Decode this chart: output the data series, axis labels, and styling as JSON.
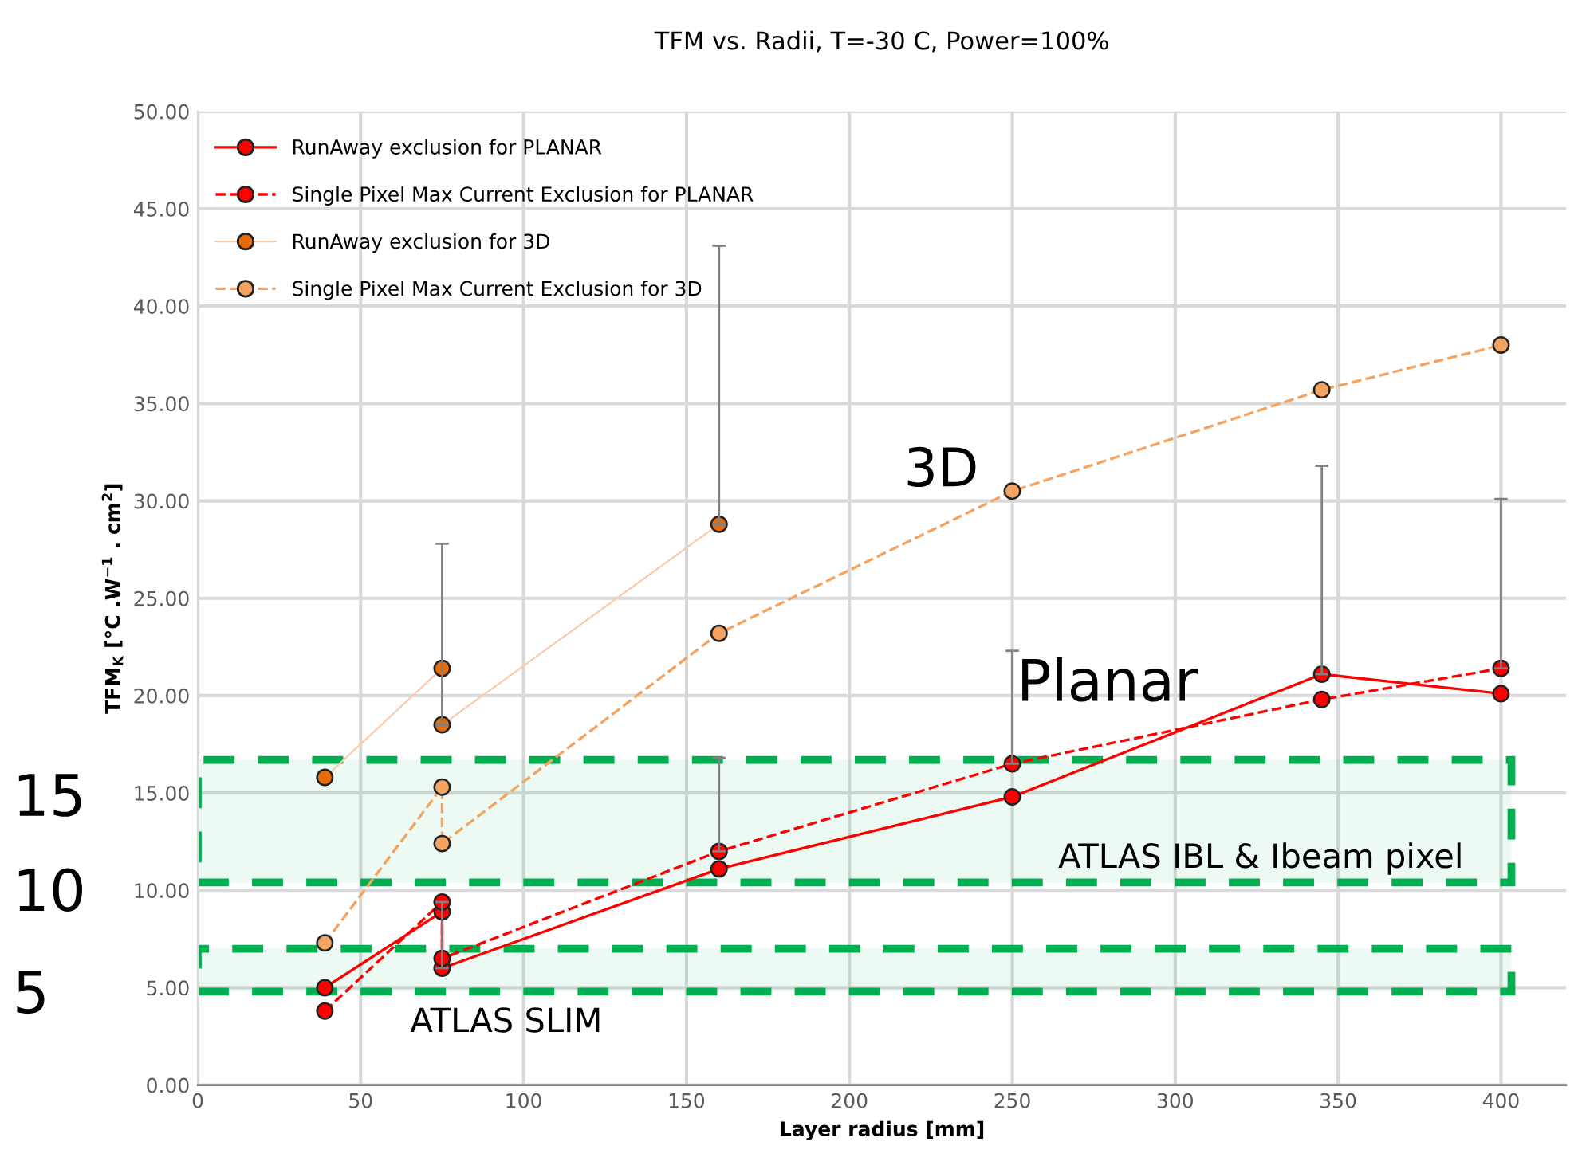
{
  "chart_data": {
    "type": "line",
    "title": "TFM vs. Radii, T=-30 C, Power=100%",
    "xlabel": "Layer radius [mm]",
    "ylabel": "TFM$_{K}$ [°C .W$^{−1}$ . cm$^{2}$]",
    "xlim": [
      0,
      420
    ],
    "xticks": [
      0,
      50,
      100,
      150,
      200,
      250,
      300,
      350,
      400
    ],
    "ylim": [
      0,
      50
    ],
    "yticks": [
      {
        "value": 0,
        "label": "0.00"
      },
      {
        "value": 5,
        "label": "5.00"
      },
      {
        "value": 10,
        "label": "10.00"
      },
      {
        "value": 15,
        "label": "15.00"
      },
      {
        "value": 20,
        "label": "20.00"
      },
      {
        "value": 25,
        "label": "25.00"
      },
      {
        "value": 30,
        "label": "30.00"
      },
      {
        "value": 35,
        "label": "35.00"
      },
      {
        "value": 40,
        "label": "40.00"
      },
      {
        "value": 45,
        "label": "45.00"
      },
      {
        "value": 50,
        "label": "50.00"
      }
    ],
    "grid": true,
    "legend": "top left",
    "marker": "circle",
    "series": [
      {
        "name": "RunAway exclusion for PLANAR",
        "color": "#ff0000",
        "line_style": "solid",
        "x": [
          39,
          75,
          75,
          160,
          250,
          345,
          400
        ],
        "values": [
          5.0,
          8.9,
          6.0,
          11.1,
          14.8,
          21.1,
          20.1
        ],
        "errors": [
          null,
          null,
          [
            6.0,
            9.4
          ],
          null,
          null,
          [
            21.1,
            31.8
          ],
          null
        ]
      },
      {
        "name": "Single Pixel Max Current Exclusion for PLANAR",
        "color": "#ff0000",
        "line_style": "dashed",
        "x": [
          39,
          75,
          75,
          160,
          250,
          345,
          400
        ],
        "values": [
          3.8,
          9.4,
          6.5,
          12.0,
          16.5,
          19.8,
          21.4
        ],
        "errors": [
          null,
          null,
          null,
          [
            12.0,
            16.8
          ],
          [
            16.5,
            22.3
          ],
          null,
          [
            21.4,
            30.1
          ]
        ]
      },
      {
        "name": "RunAway exclusion for 3D",
        "color": "#f8cbad",
        "colors": [
          "#e46c0a",
          "#e46c0a",
          "#e46c0a",
          "#e46c0a"
        ],
        "line_style": "solid",
        "x": [
          39,
          75,
          75,
          160
        ],
        "values": [
          15.8,
          21.4,
          18.5,
          28.8
        ],
        "errors": [
          null,
          null,
          [
            18.5,
            27.8
          ],
          [
            28.8,
            43.1
          ]
        ]
      },
      {
        "name": "Single Pixel Max Current Exclusion for 3D",
        "color": "#f4a460",
        "line_style": "dashed",
        "x": [
          39,
          75,
          75,
          160,
          250,
          345,
          400
        ],
        "values": [
          7.3,
          15.3,
          12.4,
          23.2,
          30.5,
          35.7,
          38.0
        ]
      }
    ],
    "bands": [
      {
        "axis": "y",
        "from": 10.4,
        "to": 16.7,
        "color": "#00b050"
      },
      {
        "axis": "y",
        "from": 4.8,
        "to": 7.0,
        "color": "#00b050"
      }
    ],
    "annotations": [
      "3D",
      "Planar",
      "ATLAS IBL & Ibeam pixel",
      "ATLAS SLIM",
      "15",
      "10",
      "5"
    ]
  }
}
